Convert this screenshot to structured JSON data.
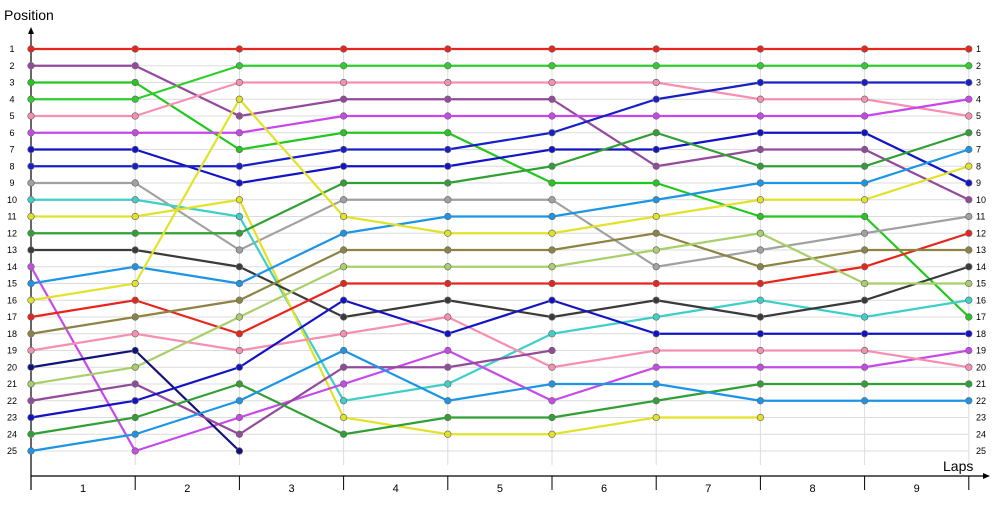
{
  "chart_data": {
    "type": "line",
    "title": "",
    "ylabel": "Position",
    "xlabel": "Laps",
    "x_tick_labels": [
      "1",
      "2",
      "3",
      "4",
      "5",
      "6",
      "7",
      "8",
      "9"
    ],
    "ylim": [
      1,
      25
    ],
    "y_inverted": true,
    "grid": true,
    "legend": "none",
    "y_tick_labels_left": [
      "1",
      "2",
      "3",
      "4",
      "5",
      "6",
      "7",
      "8",
      "9",
      "10",
      "11",
      "12",
      "13",
      "14",
      "15",
      "16",
      "17",
      "18",
      "19",
      "20",
      "21",
      "22",
      "23",
      "24",
      "25"
    ],
    "y_tick_labels_right": [
      "1",
      "2",
      "3",
      "4",
      "5",
      "6",
      "7",
      "8",
      "9",
      "10",
      "11",
      "12",
      "13",
      "14",
      "15",
      "16",
      "17",
      "18",
      "19",
      "20",
      "21",
      "22",
      "23",
      "24",
      "25"
    ],
    "series": [
      {
        "color": "#e8241c",
        "values": [
          1,
          1,
          1,
          1,
          1,
          1,
          1,
          1,
          1,
          1
        ]
      },
      {
        "color": "#944a9c",
        "values": [
          2,
          2,
          5,
          4,
          4,
          4,
          8,
          7,
          7,
          10
        ]
      },
      {
        "color": "#22c81e",
        "values": [
          3,
          3,
          7,
          6,
          6,
          9,
          9,
          11,
          11,
          17
        ]
      },
      {
        "color": "#2fcd2d",
        "values": [
          4,
          4,
          2,
          2,
          2,
          2,
          2,
          2,
          2,
          2
        ]
      },
      {
        "color": "#f78fb0",
        "values": [
          5,
          5,
          3,
          3,
          3,
          3,
          3,
          4,
          4,
          5
        ]
      },
      {
        "color": "#c846ec",
        "values": [
          6,
          6,
          6,
          5,
          5,
          5,
          5,
          5,
          5,
          4
        ]
      },
      {
        "color": "#1213c4",
        "values": [
          7,
          7,
          9,
          8,
          8,
          7,
          7,
          6,
          6,
          9
        ]
      },
      {
        "color": "#1720c6",
        "values": [
          8,
          8,
          8,
          7,
          7,
          6,
          4,
          3,
          3,
          3
        ]
      },
      {
        "color": "#a1a1a1",
        "values": [
          9,
          9,
          13,
          10,
          10,
          10,
          14,
          13,
          12,
          11
        ]
      },
      {
        "color": "#3ecfca",
        "values": [
          10,
          10,
          11,
          22,
          21,
          18,
          17,
          16,
          17,
          16
        ]
      },
      {
        "color": "#e2e22a",
        "values": [
          11,
          11,
          10,
          23,
          24,
          24,
          23,
          23
        ]
      },
      {
        "color": "#30a034",
        "values": [
          12,
          12,
          12,
          9,
          9,
          8,
          6,
          8,
          8,
          6
        ]
      },
      {
        "color": "#3a3a3a",
        "values": [
          13,
          13,
          14,
          17,
          16,
          17,
          16,
          17,
          16,
          14
        ]
      },
      {
        "color": "#c649ea",
        "values": [
          14,
          25,
          23,
          21,
          19,
          22,
          20,
          20,
          20,
          19
        ]
      },
      {
        "color": "#1c95e6",
        "values": [
          15,
          14,
          15,
          12,
          11,
          11,
          10,
          9,
          9,
          7
        ]
      },
      {
        "color": "#e2e22a",
        "values": [
          16,
          15,
          4,
          11,
          12,
          12,
          11,
          10,
          10,
          8
        ]
      },
      {
        "color": "#e8241c",
        "values": [
          17,
          16,
          18,
          15,
          15,
          15,
          15,
          15,
          14,
          12
        ]
      },
      {
        "color": "#8c8443",
        "values": [
          18,
          17,
          16,
          13,
          13,
          13,
          12,
          14,
          13,
          13
        ]
      },
      {
        "color": "#f78fb0",
        "values": [
          19,
          18,
          19,
          18,
          17,
          20,
          19,
          19,
          19,
          20
        ]
      },
      {
        "color": "#a8cf6a",
        "values": [
          21,
          20,
          17,
          14,
          14,
          14,
          13,
          12,
          15,
          15
        ]
      },
      {
        "color": "#12137a",
        "values": [
          20,
          19,
          25
        ]
      },
      {
        "color": "#944a9c",
        "values": [
          22,
          21,
          24,
          20,
          20,
          19
        ]
      },
      {
        "color": "#1213c4",
        "values": [
          23,
          22,
          20,
          16,
          18,
          16,
          18,
          18,
          18,
          18
        ]
      },
      {
        "color": "#30a034",
        "values": [
          24,
          23,
          21,
          24,
          23,
          23,
          22,
          21,
          21,
          21
        ]
      },
      {
        "color": "#1c95e6",
        "values": [
          25,
          24,
          22,
          19,
          22,
          21,
          21,
          22,
          22,
          22
        ]
      }
    ]
  }
}
